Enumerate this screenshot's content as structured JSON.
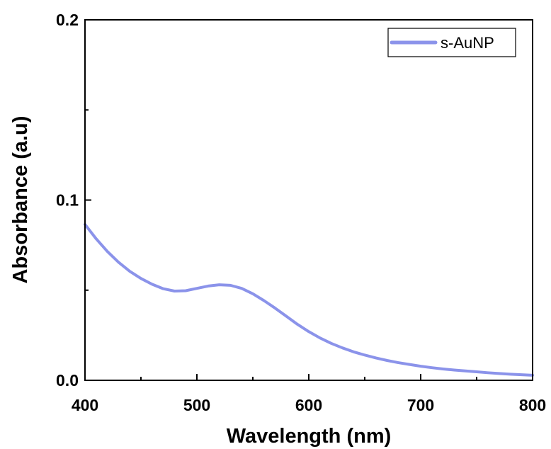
{
  "chart_data": {
    "type": "line",
    "title": "",
    "xlabel": "Wavelength (nm)",
    "ylabel": "Absorbance (a.u)",
    "xlim": [
      400,
      800
    ],
    "ylim": [
      0.0,
      0.2
    ],
    "x_ticks": [
      400,
      500,
      600,
      700,
      800
    ],
    "x_tick_labels": [
      "400",
      "500",
      "600",
      "700",
      "800"
    ],
    "y_ticks": [
      0.0,
      0.1,
      0.2
    ],
    "y_tick_labels": [
      "0.0",
      "0.1",
      "0.2"
    ],
    "grid": false,
    "legend": {
      "position": "top-right",
      "entries": [
        "s-AuNP"
      ]
    },
    "series": [
      {
        "name": "s-AuNP",
        "color": "#8b93ea",
        "x": [
          400,
          410,
          420,
          430,
          440,
          450,
          460,
          470,
          480,
          490,
          500,
          510,
          520,
          530,
          540,
          550,
          560,
          570,
          580,
          590,
          600,
          610,
          620,
          630,
          640,
          650,
          660,
          670,
          680,
          690,
          700,
          710,
          720,
          730,
          740,
          750,
          760,
          770,
          780,
          790,
          800
        ],
        "values": [
          0.0865,
          0.0785,
          0.0715,
          0.0655,
          0.0605,
          0.0565,
          0.0533,
          0.0508,
          0.0495,
          0.0497,
          0.051,
          0.0523,
          0.053,
          0.0527,
          0.051,
          0.048,
          0.0442,
          0.04,
          0.0355,
          0.031,
          0.027,
          0.0235,
          0.0205,
          0.018,
          0.0158,
          0.014,
          0.0124,
          0.011,
          0.0098,
          0.0088,
          0.0078,
          0.007,
          0.0063,
          0.0057,
          0.0052,
          0.0047,
          0.0042,
          0.0038,
          0.0034,
          0.0031,
          0.0028
        ]
      }
    ]
  }
}
